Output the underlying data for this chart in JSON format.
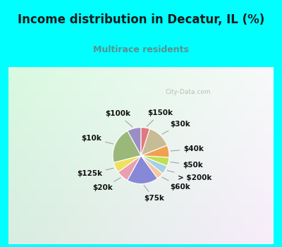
{
  "title": "Income distribution in Decatur, IL (%)",
  "subtitle": "Multirace residents",
  "title_color": "#1a1a1a",
  "subtitle_color": "#5a9090",
  "bg_cyan": "#00ffff",
  "bg_chart": "#e8f5ee",
  "slices": [
    {
      "label": "$100k",
      "value": 8,
      "color": "#9b8ec4"
    },
    {
      "label": "$10k",
      "value": 21,
      "color": "#9ab87a"
    },
    {
      "label": "$125k",
      "value": 6,
      "color": "#f0e060"
    },
    {
      "label": "$20k",
      "value": 7,
      "color": "#e8a0b0"
    },
    {
      "label": "$75k",
      "value": 18,
      "color": "#8888d8"
    },
    {
      "label": "$60k",
      "value": 4,
      "color": "#f5c8a0"
    },
    {
      "label": "> $200k",
      "value": 5,
      "color": "#a8d0e8"
    },
    {
      "label": "$50k",
      "value": 5,
      "color": "#c0e050"
    },
    {
      "label": "$40k",
      "value": 7,
      "color": "#f0a050"
    },
    {
      "label": "$30k",
      "value": 14,
      "color": "#c8bc96"
    },
    {
      "label": "$150k",
      "value": 5,
      "color": "#e07880"
    }
  ],
  "start_angle": 90,
  "label_fontsize": 7.5,
  "title_fontsize": 12,
  "subtitle_fontsize": 9
}
